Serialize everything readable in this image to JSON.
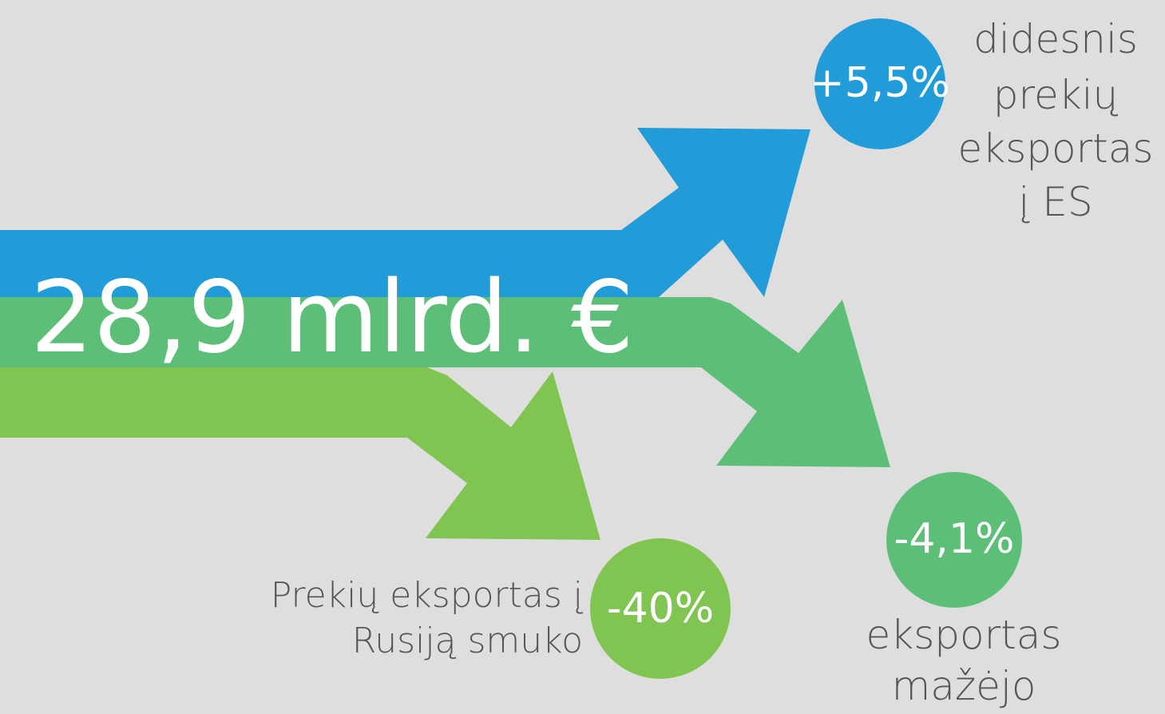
{
  "total": "28,9 mlrd. €",
  "items": [
    {
      "percent": "+5,5%",
      "description": [
        "didesnis",
        "prekių",
        "eksportas",
        "į ES"
      ]
    },
    {
      "percent": "-4,1%",
      "description": [
        "eksportas",
        "mažėjo"
      ]
    },
    {
      "percent": "-40%",
      "description": [
        "Prekių eksportas į",
        "Rusiją smuko"
      ]
    }
  ]
}
